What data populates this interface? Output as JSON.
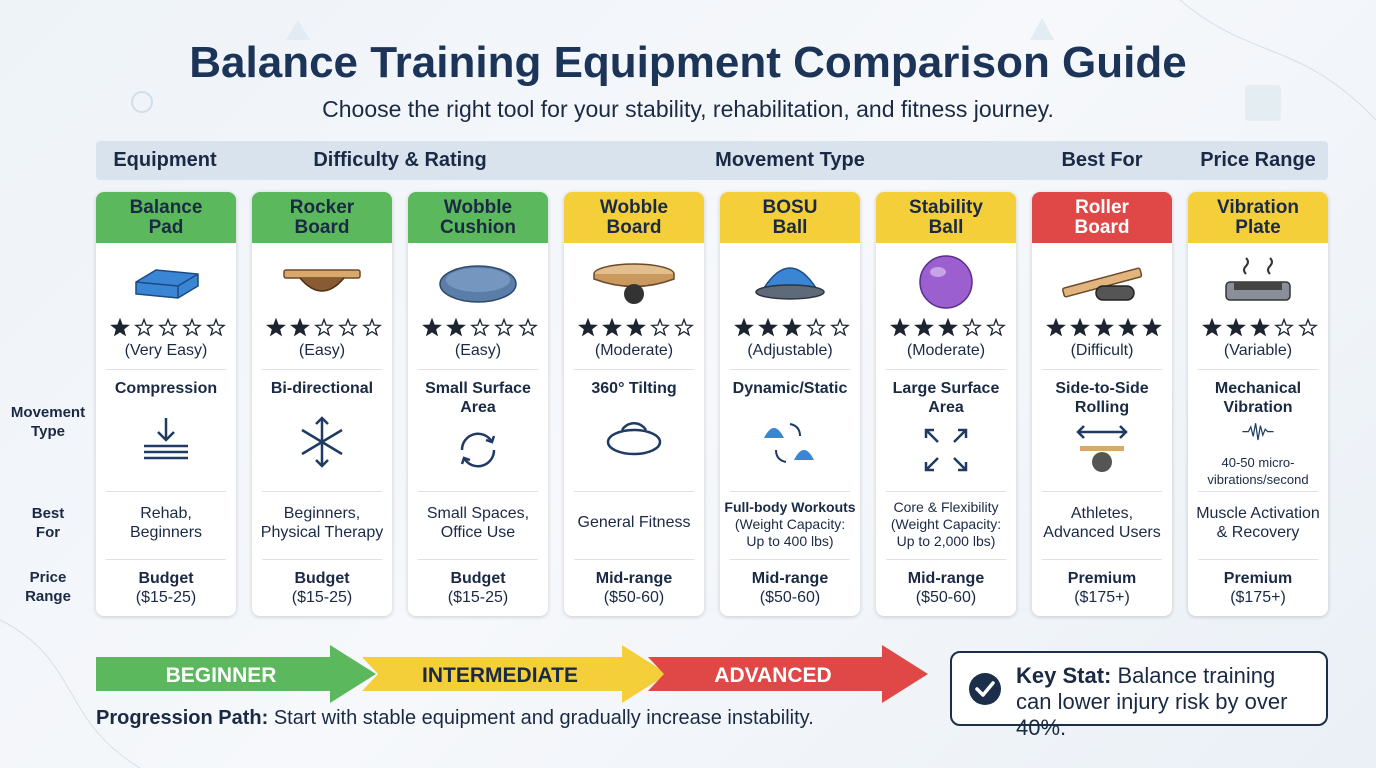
{
  "header": {
    "title": "Balance Training Equipment Comparison Guide",
    "subtitle": "Choose the right tool for your stability, rehabilitation, and fitness journey."
  },
  "columns": [
    "Equipment",
    "Difficulty & Rating",
    "Movement Type",
    "Best For",
    "Price Range"
  ],
  "row_labels": [
    [
      "Movement",
      "Type"
    ],
    [
      "Best",
      "For"
    ],
    [
      "Price",
      "Range"
    ]
  ],
  "max_rating": 5,
  "cards": [
    {
      "name": [
        "Balance",
        "Pad"
      ],
      "color": "#5cb85c",
      "rating": 1,
      "difficulty": "(Very Easy)",
      "movement": [
        "Compression"
      ],
      "best_for": [
        "Rehab,",
        "Beginners"
      ],
      "price": [
        "Budget",
        "($15-25)"
      ]
    },
    {
      "name": [
        "Rocker",
        "Board"
      ],
      "color": "#5cb85c",
      "rating": 2,
      "difficulty": "(Easy)",
      "movement": [
        "Bi-directional"
      ],
      "best_for": [
        "Beginners,",
        "Physical Therapy"
      ],
      "price": [
        "Budget",
        "($15-25)"
      ]
    },
    {
      "name": [
        "Wobble",
        "Cushion"
      ],
      "color": "#5cb85c",
      "rating": 2,
      "difficulty": "(Easy)",
      "movement": [
        "Small Surface",
        "Area"
      ],
      "best_for": [
        "Small Spaces,",
        "Office Use"
      ],
      "price": [
        "Budget",
        "($15-25)"
      ]
    },
    {
      "name": [
        "Wobble",
        "Board"
      ],
      "color": "#f5cf3a",
      "rating": 3,
      "difficulty": "(Moderate)",
      "movement": [
        "360° Tilting"
      ],
      "best_for": [
        "General Fitness"
      ],
      "price": [
        "Mid-range",
        "($50-60)"
      ]
    },
    {
      "name": [
        "BOSU",
        "Ball"
      ],
      "color": "#f5cf3a",
      "rating": 3,
      "difficulty": "(Adjustable)",
      "movement": [
        "Dynamic/Static"
      ],
      "best_for": [
        "Full-body Workouts",
        "(Weight Capacity:",
        "Up to 400 lbs)"
      ],
      "price": [
        "Mid-range",
        "($50-60)"
      ]
    },
    {
      "name": [
        "Stability",
        "Ball"
      ],
      "color": "#f5cf3a",
      "rating": 3,
      "difficulty": "(Moderate)",
      "movement": [
        "Large Surface",
        "Area"
      ],
      "best_for": [
        "Core & Flexibility",
        "(Weight Capacity:",
        "Up to 2,000 lbs)"
      ],
      "price": [
        "Mid-range",
        "($50-60)"
      ]
    },
    {
      "name": [
        "Roller",
        "Board"
      ],
      "color": "#e04848",
      "rating": 5,
      "difficulty": "(Difficult)",
      "movement": [
        "Side-to-Side",
        "Rolling"
      ],
      "best_for": [
        "Athletes,",
        "Advanced Users"
      ],
      "price": [
        "Premium",
        "($175+)"
      ]
    },
    {
      "name": [
        "Vibration",
        "Plate"
      ],
      "color": "#f5cf3a",
      "rating": 3,
      "difficulty": "(Variable)",
      "movement": [
        "Mechanical",
        "Vibration"
      ],
      "movement_note": [
        "40-50 micro-",
        "vibrations/second"
      ],
      "best_for": [
        "Muscle Activation",
        "& Recovery"
      ],
      "price": [
        "Premium",
        "($175+)"
      ]
    }
  ],
  "progression": {
    "levels": [
      {
        "label": "BEGINNER",
        "color": "#5cb85c"
      },
      {
        "label": "INTERMEDIATE",
        "color": "#f5cf3a"
      },
      {
        "label": "ADVANCED",
        "color": "#e04848"
      }
    ],
    "label": "Progression Path:",
    "text": "Start with stable equipment and gradually increase instability."
  },
  "key_stat": {
    "label": "Key Stat:",
    "text": "Balance training can lower injury risk by over 40%."
  }
}
